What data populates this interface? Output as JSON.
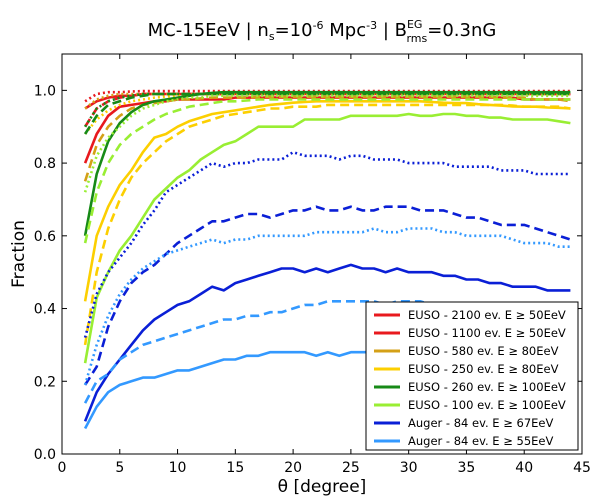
{
  "chart_data": {
    "type": "line",
    "title": {
      "main": "MC-15EeV | n",
      "ns_sub": "s",
      "eq1": "=10",
      "exp": "-6",
      "unit": "Mpc",
      "unit_exp": "-3",
      "sep": "| B",
      "b_sup": "EG",
      "b_sub": "rms",
      "tail": "=0.3nG"
    },
    "xlabel": "θ [degree]",
    "ylabel": "Fraction",
    "xlim": [
      0,
      45
    ],
    "ylim": [
      0.0,
      1.1
    ],
    "xticks": [
      "0",
      "5",
      "10",
      "15",
      "20",
      "25",
      "30",
      "35",
      "40",
      "45"
    ],
    "yticks": [
      "0.0",
      "0.2",
      "0.4",
      "0.6",
      "0.8",
      "1.0"
    ],
    "grid": false,
    "legend_position": "lower-right",
    "x": [
      2,
      3,
      4,
      5,
      6,
      7,
      8,
      9,
      10,
      11,
      12,
      13,
      14,
      15,
      16,
      17,
      18,
      19,
      20,
      21,
      22,
      23,
      24,
      25,
      26,
      27,
      28,
      29,
      30,
      31,
      32,
      33,
      34,
      35,
      36,
      37,
      38,
      39,
      40,
      41,
      42,
      43,
      44
    ],
    "legend": [
      {
        "label": "EUSO - 2100 ev. E ≥ 50EeV",
        "color": "#e8191e"
      },
      {
        "label": "EUSO - 1100 ev. E ≥ 50EeV",
        "color": "#e8191e"
      },
      {
        "label": "EUSO - 580 ev. E ≥ 80EeV",
        "color": "#d4a017"
      },
      {
        "label": "EUSO - 250 ev. E ≥ 80EeV",
        "color": "#fccf00"
      },
      {
        "label": "EUSO - 260 ev. E ≥ 100EeV",
        "color": "#178a17"
      },
      {
        "label": "EUSO - 100 ev. E ≥ 100EeV",
        "color": "#99ee33"
      },
      {
        "label": "Auger - 84 ev. E ≥ 67EeV",
        "color": "#0a1fd6"
      },
      {
        "label": "Auger - 84 ev. E ≥ 55EeV",
        "color": "#3399ff"
      }
    ],
    "series": [
      {
        "color": "#e8191e",
        "style": "dotted",
        "values": [
          0.97,
          0.99,
          0.995,
          0.995,
          0.997,
          0.998,
          0.998,
          0.998,
          0.998,
          0.998,
          0.998,
          0.998,
          0.998,
          0.998,
          0.998,
          0.998,
          0.998,
          0.998,
          0.998,
          0.998,
          0.998,
          0.998,
          0.998,
          0.998,
          0.998,
          0.998,
          0.998,
          0.998,
          0.998,
          0.998,
          0.998,
          0.998,
          0.998,
          0.998,
          0.998,
          0.998,
          0.998,
          0.998,
          0.998,
          0.998,
          0.998,
          0.998,
          0.998
        ]
      },
      {
        "color": "#e8191e",
        "style": "dashed",
        "values": [
          0.9,
          0.95,
          0.97,
          0.98,
          0.985,
          0.99,
          0.99,
          0.99,
          0.99,
          0.99,
          0.99,
          0.99,
          0.99,
          0.99,
          0.99,
          0.99,
          0.99,
          0.99,
          0.99,
          0.99,
          0.99,
          0.99,
          0.99,
          0.99,
          0.99,
          0.99,
          0.99,
          0.99,
          0.99,
          0.99,
          0.99,
          0.99,
          0.99,
          0.99,
          0.99,
          0.99,
          0.99,
          0.99,
          0.99,
          0.99,
          0.99,
          0.99,
          0.99
        ]
      },
      {
        "color": "#e8191e",
        "style": "solid",
        "values": [
          0.95,
          0.97,
          0.98,
          0.985,
          0.985,
          0.99,
          0.99,
          0.99,
          0.99,
          0.99,
          0.99,
          0.99,
          0.99,
          0.99,
          0.99,
          0.99,
          0.99,
          0.99,
          0.99,
          0.99,
          0.99,
          0.99,
          0.99,
          0.99,
          0.99,
          0.99,
          0.99,
          0.99,
          0.99,
          0.99,
          0.99,
          0.99,
          0.99,
          0.99,
          0.99,
          0.99,
          0.99,
          0.99,
          0.99,
          0.99,
          0.99,
          0.99,
          0.99
        ]
      },
      {
        "color": "#e8191e",
        "style": "solid",
        "values": [
          0.8,
          0.88,
          0.93,
          0.955,
          0.96,
          0.965,
          0.97,
          0.97,
          0.975,
          0.975,
          0.975,
          0.975,
          0.975,
          0.98,
          0.98,
          0.98,
          0.98,
          0.98,
          0.98,
          0.98,
          0.98,
          0.98,
          0.98,
          0.98,
          0.98,
          0.98,
          0.98,
          0.98,
          0.98,
          0.98,
          0.98,
          0.98,
          0.98,
          0.98,
          0.98,
          0.98,
          0.98,
          0.98,
          0.975,
          0.975,
          0.975,
          0.975,
          0.975
        ]
      },
      {
        "color": "#d4a017",
        "style": "dotted",
        "values": [
          0.95,
          0.975,
          0.985,
          0.99,
          0.99,
          0.99,
          0.99,
          0.99,
          0.99,
          0.99,
          0.99,
          0.99,
          0.99,
          0.99,
          0.99,
          0.99,
          0.99,
          0.99,
          0.99,
          0.99,
          0.99,
          0.99,
          0.99,
          0.99,
          0.99,
          0.99,
          0.99,
          0.99,
          0.99,
          0.99,
          0.99,
          0.99,
          0.99,
          0.99,
          0.99,
          0.99,
          0.99,
          0.99,
          0.99,
          0.99,
          0.99,
          0.99,
          0.99
        ]
      },
      {
        "color": "#d4a017",
        "style": "dashed",
        "values": [
          0.75,
          0.85,
          0.9,
          0.93,
          0.95,
          0.96,
          0.965,
          0.97,
          0.975,
          0.975,
          0.978,
          0.98,
          0.98,
          0.98,
          0.98,
          0.982,
          0.982,
          0.982,
          0.982,
          0.982,
          0.982,
          0.982,
          0.982,
          0.982,
          0.982,
          0.982,
          0.982,
          0.982,
          0.982,
          0.982,
          0.982,
          0.982,
          0.982,
          0.982,
          0.982,
          0.982,
          0.98,
          0.98,
          0.98,
          0.975,
          0.975,
          0.975,
          0.97
        ]
      },
      {
        "color": "#fccf00",
        "style": "dotted",
        "values": [
          0.88,
          0.92,
          0.945,
          0.96,
          0.97,
          0.975,
          0.98,
          0.983,
          0.985,
          0.987,
          0.99,
          0.99,
          0.99,
          0.99,
          0.99,
          0.99,
          0.99,
          0.99,
          0.99,
          0.99,
          0.99,
          0.99,
          0.99,
          0.99,
          0.99,
          0.99,
          0.99,
          0.99,
          0.99,
          0.99,
          0.99,
          0.99,
          0.99,
          0.99,
          0.99,
          0.99,
          0.99,
          0.99,
          0.99,
          0.99,
          0.99,
          0.99,
          0.99
        ]
      },
      {
        "color": "#fccf00",
        "style": "dashed",
        "values": [
          0.3,
          0.5,
          0.62,
          0.7,
          0.76,
          0.8,
          0.83,
          0.86,
          0.88,
          0.9,
          0.91,
          0.92,
          0.93,
          0.935,
          0.94,
          0.945,
          0.95,
          0.95,
          0.955,
          0.955,
          0.955,
          0.96,
          0.96,
          0.96,
          0.96,
          0.96,
          0.96,
          0.96,
          0.96,
          0.96,
          0.96,
          0.96,
          0.96,
          0.96,
          0.96,
          0.96,
          0.96,
          0.958,
          0.955,
          0.955,
          0.955,
          0.955,
          0.95
        ]
      },
      {
        "color": "#fccf00",
        "style": "solid",
        "values": [
          0.42,
          0.6,
          0.68,
          0.74,
          0.78,
          0.83,
          0.87,
          0.88,
          0.9,
          0.915,
          0.925,
          0.935,
          0.94,
          0.945,
          0.95,
          0.955,
          0.96,
          0.963,
          0.966,
          0.968,
          0.97,
          0.97,
          0.97,
          0.97,
          0.97,
          0.97,
          0.97,
          0.97,
          0.97,
          0.97,
          0.968,
          0.966,
          0.965,
          0.965,
          0.962,
          0.96,
          0.958,
          0.956,
          0.955,
          0.955,
          0.953,
          0.952,
          0.95
        ]
      },
      {
        "color": "#178a17",
        "style": "dotted",
        "values": [
          0.9,
          0.95,
          0.97,
          0.98,
          0.985,
          0.99,
          0.99,
          0.99,
          0.99,
          0.99,
          0.99,
          0.99,
          0.99,
          0.99,
          0.99,
          0.99,
          0.99,
          0.99,
          0.99,
          0.99,
          0.99,
          0.99,
          0.99,
          0.99,
          0.99,
          0.99,
          0.99,
          0.99,
          0.99,
          0.99,
          0.99,
          0.99,
          0.99,
          0.99,
          0.99,
          0.99,
          0.99,
          0.99,
          0.99,
          0.99,
          0.99,
          0.99,
          0.99
        ]
      },
      {
        "color": "#178a17",
        "style": "dashed",
        "values": [
          0.88,
          0.93,
          0.96,
          0.97,
          0.98,
          0.985,
          0.99,
          0.99,
          0.99,
          0.99,
          0.99,
          0.99,
          0.99,
          0.99,
          0.99,
          0.99,
          0.99,
          0.99,
          0.99,
          0.99,
          0.99,
          0.99,
          0.99,
          0.99,
          0.99,
          0.99,
          0.99,
          0.99,
          0.99,
          0.99,
          0.99,
          0.99,
          0.99,
          0.99,
          0.99,
          0.99,
          0.99,
          0.99,
          0.99,
          0.99,
          0.99,
          0.99,
          0.99
        ]
      },
      {
        "color": "#178a17",
        "style": "solid",
        "values": [
          0.6,
          0.77,
          0.86,
          0.91,
          0.94,
          0.96,
          0.97,
          0.975,
          0.98,
          0.985,
          0.99,
          0.993,
          0.995,
          0.995,
          0.995,
          0.995,
          0.995,
          0.995,
          0.995,
          0.995,
          0.995,
          0.995,
          0.995,
          0.995,
          0.995,
          0.995,
          0.995,
          0.995,
          0.995,
          0.995,
          0.995,
          0.995,
          0.995,
          0.995,
          0.995,
          0.995,
          0.995,
          0.995,
          0.995,
          0.995,
          0.995,
          0.995,
          0.995
        ]
      },
      {
        "color": "#99ee33",
        "style": "dotted",
        "values": [
          0.72,
          0.82,
          0.87,
          0.9,
          0.93,
          0.95,
          0.96,
          0.97,
          0.975,
          0.98,
          0.98,
          0.985,
          0.985,
          0.985,
          0.985,
          0.985,
          0.985,
          0.985,
          0.985,
          0.985,
          0.985,
          0.985,
          0.985,
          0.985,
          0.985,
          0.985,
          0.985,
          0.985,
          0.985,
          0.985,
          0.985,
          0.985,
          0.985,
          0.985,
          0.985,
          0.985,
          0.985,
          0.985,
          0.985,
          0.985,
          0.985,
          0.985,
          0.985
        ]
      },
      {
        "color": "#99ee33",
        "style": "dashed",
        "values": [
          0.58,
          0.72,
          0.8,
          0.85,
          0.88,
          0.9,
          0.92,
          0.935,
          0.945,
          0.955,
          0.96,
          0.965,
          0.97,
          0.97,
          0.972,
          0.975,
          0.975,
          0.975,
          0.975,
          0.975,
          0.975,
          0.975,
          0.975,
          0.975,
          0.975,
          0.975,
          0.975,
          0.975,
          0.975,
          0.975,
          0.975,
          0.975,
          0.975,
          0.975,
          0.975,
          0.975,
          0.975,
          0.975,
          0.975,
          0.975,
          0.975,
          0.975,
          0.975
        ]
      },
      {
        "color": "#99ee33",
        "style": "solid",
        "values": [
          0.25,
          0.43,
          0.5,
          0.56,
          0.6,
          0.65,
          0.7,
          0.73,
          0.76,
          0.78,
          0.81,
          0.83,
          0.85,
          0.86,
          0.88,
          0.9,
          0.9,
          0.9,
          0.9,
          0.92,
          0.92,
          0.92,
          0.92,
          0.93,
          0.93,
          0.93,
          0.93,
          0.93,
          0.935,
          0.93,
          0.93,
          0.935,
          0.935,
          0.93,
          0.93,
          0.925,
          0.925,
          0.92,
          0.92,
          0.92,
          0.92,
          0.915,
          0.91
        ]
      },
      {
        "color": "#0a1fd6",
        "style": "dotted",
        "values": [
          0.32,
          0.44,
          0.5,
          0.54,
          0.58,
          0.63,
          0.67,
          0.72,
          0.74,
          0.76,
          0.78,
          0.8,
          0.79,
          0.8,
          0.8,
          0.81,
          0.81,
          0.81,
          0.83,
          0.82,
          0.82,
          0.82,
          0.81,
          0.82,
          0.82,
          0.81,
          0.81,
          0.81,
          0.8,
          0.8,
          0.8,
          0.8,
          0.79,
          0.79,
          0.79,
          0.79,
          0.78,
          0.78,
          0.78,
          0.77,
          0.77,
          0.77,
          0.77
        ]
      },
      {
        "color": "#0a1fd6",
        "style": "dashed",
        "values": [
          0.19,
          0.24,
          0.35,
          0.42,
          0.47,
          0.5,
          0.52,
          0.55,
          0.58,
          0.6,
          0.62,
          0.64,
          0.64,
          0.65,
          0.66,
          0.66,
          0.65,
          0.66,
          0.67,
          0.67,
          0.68,
          0.67,
          0.67,
          0.68,
          0.67,
          0.67,
          0.68,
          0.68,
          0.68,
          0.67,
          0.67,
          0.67,
          0.66,
          0.65,
          0.65,
          0.64,
          0.63,
          0.63,
          0.63,
          0.62,
          0.61,
          0.6,
          0.59
        ]
      },
      {
        "color": "#0a1fd6",
        "style": "solid",
        "values": [
          0.09,
          0.17,
          0.22,
          0.26,
          0.3,
          0.34,
          0.37,
          0.39,
          0.41,
          0.42,
          0.44,
          0.46,
          0.45,
          0.47,
          0.48,
          0.49,
          0.5,
          0.51,
          0.51,
          0.5,
          0.51,
          0.5,
          0.51,
          0.52,
          0.51,
          0.51,
          0.5,
          0.51,
          0.5,
          0.5,
          0.5,
          0.49,
          0.49,
          0.48,
          0.48,
          0.47,
          0.47,
          0.46,
          0.46,
          0.46,
          0.45,
          0.45,
          0.45
        ]
      },
      {
        "color": "#3399ff",
        "style": "dotted",
        "values": [
          0.19,
          0.3,
          0.38,
          0.44,
          0.48,
          0.51,
          0.53,
          0.55,
          0.56,
          0.57,
          0.58,
          0.59,
          0.58,
          0.59,
          0.59,
          0.6,
          0.6,
          0.6,
          0.6,
          0.6,
          0.61,
          0.61,
          0.61,
          0.61,
          0.61,
          0.62,
          0.61,
          0.61,
          0.62,
          0.62,
          0.62,
          0.61,
          0.61,
          0.6,
          0.6,
          0.6,
          0.6,
          0.59,
          0.58,
          0.58,
          0.58,
          0.57,
          0.57
        ]
      },
      {
        "color": "#3399ff",
        "style": "dashed",
        "values": [
          0.14,
          0.2,
          0.22,
          0.26,
          0.28,
          0.3,
          0.31,
          0.32,
          0.33,
          0.34,
          0.35,
          0.36,
          0.37,
          0.37,
          0.38,
          0.38,
          0.39,
          0.39,
          0.4,
          0.41,
          0.41,
          0.42,
          0.42,
          0.42,
          0.42,
          0.42,
          0.41,
          0.42,
          0.42,
          0.42,
          0.41,
          0.41,
          0.4,
          0.4,
          0.4,
          0.39,
          0.39,
          0.38,
          0.38,
          0.37,
          0.37,
          0.36,
          0.35
        ]
      },
      {
        "color": "#3399ff",
        "style": "solid",
        "values": [
          0.07,
          0.13,
          0.17,
          0.19,
          0.2,
          0.21,
          0.21,
          0.22,
          0.23,
          0.23,
          0.24,
          0.25,
          0.26,
          0.26,
          0.27,
          0.27,
          0.28,
          0.28,
          0.28,
          0.28,
          0.27,
          0.28,
          0.27,
          0.28,
          0.28,
          0.28,
          0.28,
          0.27,
          0.27,
          0.27,
          0.27,
          0.26,
          0.26,
          0.26,
          0.26,
          0.26,
          0.26,
          0.25,
          0.25,
          0.25,
          0.25,
          0.25,
          0.25
        ]
      }
    ]
  }
}
